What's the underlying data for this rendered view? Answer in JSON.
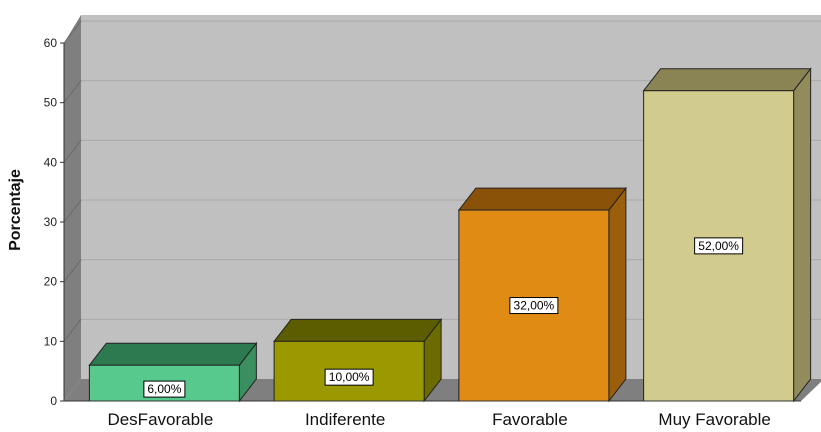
{
  "chart_data": {
    "type": "bar",
    "categories": [
      "DesFavorable",
      "Indiferente",
      "Favorable",
      "Muy Favorable"
    ],
    "values": [
      6,
      10,
      32,
      52
    ],
    "data_labels": [
      "6,00%",
      "10,00%",
      "32,00%",
      "52,00%"
    ],
    "title": "",
    "xlabel": "",
    "ylabel": "Porcentaje",
    "ylim": [
      0,
      60
    ],
    "yticks": [
      0,
      10,
      20,
      30,
      40,
      50,
      60
    ],
    "grid": true,
    "style": "3d",
    "colors": {
      "plot_background": "#c0c0c0",
      "plot_side_wall": "#7f7f7f",
      "plot_floor": "#7f7f7f",
      "gridline": "#a9a9a9",
      "bars": [
        {
          "front": "#58c98c",
          "top": "#2e7a50",
          "side": "#3a8e60"
        },
        {
          "front": "#9a9a00",
          "top": "#5c5c00",
          "side": "#6b6b00"
        },
        {
          "front": "#e08c14",
          "top": "#8a5208",
          "side": "#9a5e0c"
        },
        {
          "front": "#d2cb8e",
          "top": "#8a8454",
          "side": "#928c5c"
        }
      ]
    }
  }
}
